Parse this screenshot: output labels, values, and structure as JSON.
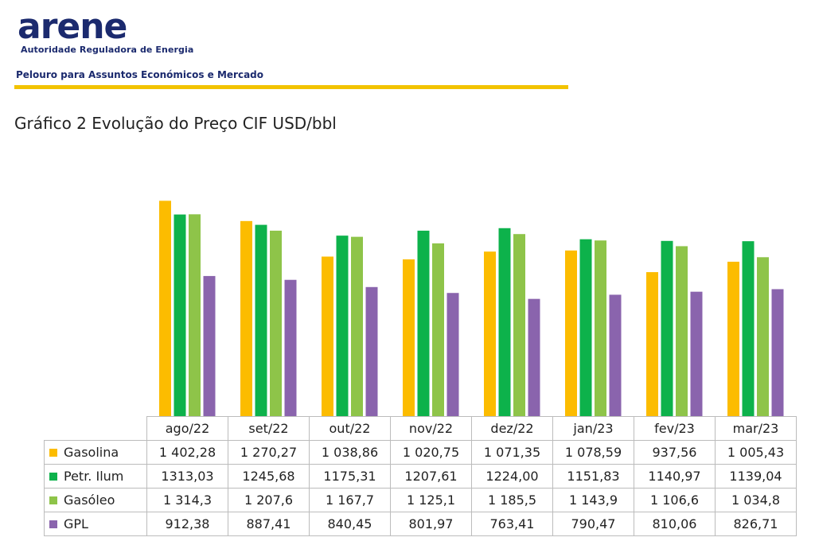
{
  "header": {
    "logo_text": "arene",
    "logo_subtitle": "Autoridade Reguladora de Energia",
    "department": "Pelouro para Assuntos Económicos e Mercado"
  },
  "chart_data": {
    "type": "bar",
    "title": "Gráfico 2 Evolução do Preço CIF USD/bbl",
    "categories": [
      "ago/22",
      "set/22",
      "out/22",
      "nov/22",
      "dez/22",
      "jan/23",
      "fev/23",
      "mar/23"
    ],
    "ylim": [
      0,
      1500
    ],
    "grid": false,
    "legend": "table-below",
    "series": [
      {
        "name": "Gasolina",
        "color": "#fcbc00",
        "values": [
          1402.28,
          1270.27,
          1038.86,
          1020.75,
          1071.35,
          1078.59,
          937.56,
          1005.43
        ],
        "labels": [
          "1 402,28",
          "1 270,27",
          "1 038,86",
          "1 020,75",
          "1 071,35",
          "1 078,59",
          "937,56",
          "1 005,43"
        ]
      },
      {
        "name": "Petr. Ilum",
        "color": "#0db24b",
        "values": [
          1313.03,
          1245.68,
          1175.31,
          1207.61,
          1224.0,
          1151.83,
          1140.97,
          1139.04
        ],
        "labels": [
          "1313,03",
          "1245,68",
          "1175,31",
          "1207,61",
          "1224,00",
          "1151,83",
          "1140,97",
          "1139,04"
        ]
      },
      {
        "name": "Gasóleo",
        "color": "#8ec449",
        "values": [
          1314.3,
          1207.6,
          1167.7,
          1125.1,
          1185.5,
          1143.9,
          1106.6,
          1034.8
        ],
        "labels": [
          "1 314,3",
          "1 207,6",
          "1 167,7",
          "1 125,1",
          "1 185,5",
          "1 143,9",
          "1 106,6",
          "1 034,8"
        ]
      },
      {
        "name": "GPL",
        "color": "#8a64ad",
        "values": [
          912.38,
          887.41,
          840.45,
          801.97,
          763.41,
          790.47,
          810.06,
          826.71
        ],
        "labels": [
          "912,38",
          "887,41",
          "840,45",
          "801,97",
          "763,41",
          "790,47",
          "810,06",
          "826,71"
        ]
      }
    ]
  }
}
